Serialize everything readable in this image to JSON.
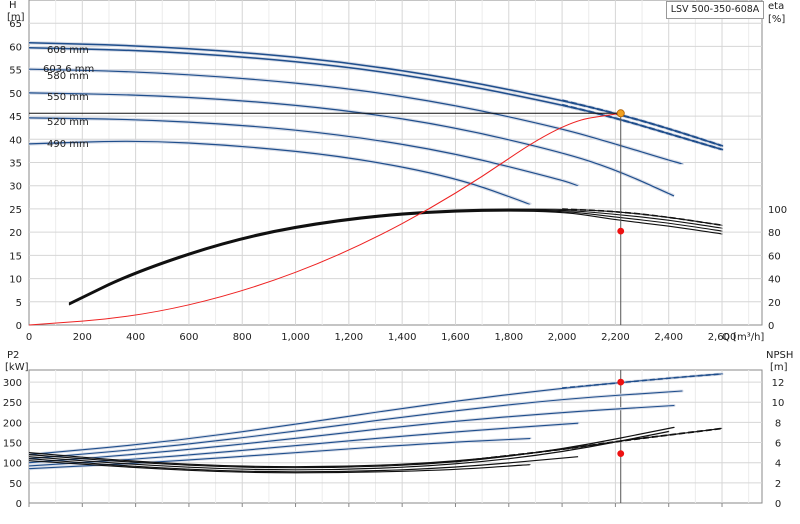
{
  "model_label": "LSV 500-350-608A",
  "chart_data": [
    {
      "type": "line",
      "title": "",
      "xlabel": "Q [m³/h]",
      "x_ticks": [
        "0",
        "200",
        "400",
        "600",
        "800",
        "1,000",
        "1,200",
        "1,400",
        "1,600",
        "1,800",
        "2,000",
        "2,200",
        "2,400",
        "2,600"
      ],
      "xlim": [
        0,
        2750
      ],
      "ylabel_left": "H [m]",
      "ylim_left": [
        0,
        70
      ],
      "yticks_left": [
        "0",
        "5",
        "10",
        "15",
        "20",
        "25",
        "30",
        "35",
        "40",
        "45",
        "50",
        "55",
        "60",
        "65"
      ],
      "ylabel_right": "eta [%]",
      "ylim_right": [
        0,
        100
      ],
      "yticks_right": [
        "0",
        "20",
        "40",
        "60",
        "80",
        "100"
      ],
      "grid": true,
      "head_curves": [
        {
          "label": "608 mm",
          "x": [
            0,
            400,
            800,
            1200,
            1600,
            2000,
            2200,
            2400,
            2600
          ],
          "y": [
            60.8,
            60.2,
            58.8,
            56.5,
            53.0,
            48.4,
            45.6,
            42.3,
            38.6
          ]
        },
        {
          "label": "603.6 mm",
          "x": [
            0,
            400,
            800,
            1200,
            1600,
            2000,
            2200,
            2400,
            2600
          ],
          "y": [
            59.7,
            59.2,
            57.8,
            55.6,
            52.1,
            47.4,
            44.6,
            41.2,
            37.8
          ]
        },
        {
          "label": "580 mm",
          "x": [
            0,
            400,
            800,
            1200,
            1600,
            2000,
            2200,
            2400,
            2450
          ],
          "y": [
            55.1,
            54.6,
            53.2,
            51.0,
            47.4,
            42.3,
            39.0,
            35.5,
            34.7
          ]
        },
        {
          "label": "550 mm",
          "x": [
            0,
            400,
            800,
            1200,
            1600,
            2000,
            2200,
            2420
          ],
          "y": [
            50.0,
            49.6,
            48.4,
            46.2,
            42.6,
            37.2,
            33.5,
            27.8
          ]
        },
        {
          "label": "520 mm",
          "x": [
            0,
            400,
            800,
            1200,
            1600,
            2000,
            2060
          ],
          "y": [
            44.6,
            44.3,
            43.1,
            40.8,
            37.0,
            31.2,
            30.0
          ]
        },
        {
          "label": "490 mm",
          "x": [
            0,
            400,
            800,
            1200,
            1600,
            1880
          ],
          "y": [
            39.0,
            39.8,
            38.6,
            36.2,
            31.8,
            26.0
          ]
        }
      ],
      "efficiency_curves": {
        "axis": "eta",
        "x": [
          150,
          400,
          800,
          1200,
          1600,
          2000,
          2200,
          2400,
          2600
        ],
        "y": [
          19,
          47,
          77,
          93,
          100,
          100,
          98,
          93,
          86
        ]
      },
      "system_curve": {
        "x": [
          0,
          400,
          800,
          1200,
          1600,
          2000,
          2220
        ],
        "y": [
          0,
          1.7,
          7.0,
          15.7,
          28.0,
          43.7,
          45.6
        ]
      },
      "duty_point": {
        "q": 2220,
        "h": 45.6,
        "eta": 80.9
      }
    },
    {
      "type": "line",
      "title": "",
      "xlim": [
        0,
        2750
      ],
      "ylabel_left": "P2 [kW]",
      "ylim_left": [
        0,
        330
      ],
      "yticks_left": [
        "0",
        "50",
        "100",
        "150",
        "200",
        "250",
        "300"
      ],
      "ylabel_right": "NPSH [m]",
      "ylim_right": [
        0,
        13.2
      ],
      "yticks_right": [
        "0",
        "2",
        "4",
        "6",
        "8",
        "10",
        "12"
      ],
      "grid": true,
      "power_curves": [
        {
          "label": "608 mm",
          "x": [
            0,
            500,
            1000,
            1500,
            2000,
            2400,
            2600
          ],
          "y": [
            120,
            150,
            195,
            245,
            285,
            310,
            320
          ]
        },
        {
          "label": "580 mm",
          "x": [
            0,
            500,
            1000,
            1500,
            2000,
            2450
          ],
          "y": [
            110,
            138,
            178,
            222,
            258,
            278
          ]
        },
        {
          "label": "550 mm",
          "x": [
            0,
            500,
            1000,
            1500,
            2000,
            2420
          ],
          "y": [
            100,
            126,
            160,
            198,
            225,
            242
          ]
        },
        {
          "label": "520 mm",
          "x": [
            0,
            500,
            1000,
            1500,
            2060
          ],
          "y": [
            92,
            113,
            142,
            172,
            198
          ]
        },
        {
          "label": "490 mm",
          "x": [
            0,
            500,
            1000,
            1500,
            1880
          ],
          "y": [
            85,
            102,
            125,
            148,
            160
          ]
        }
      ],
      "npsh_curves": [
        {
          "x": [
            0,
            400,
            800,
            1200,
            1600,
            1880
          ],
          "y": [
            4.2,
            3.5,
            3.0,
            3.0,
            3.3,
            3.8
          ]
        },
        {
          "x": [
            0,
            400,
            800,
            1200,
            1600,
            2060
          ],
          "y": [
            4.4,
            3.6,
            3.1,
            3.1,
            3.5,
            4.6
          ]
        },
        {
          "x": [
            0,
            400,
            800,
            1200,
            1600,
            2000,
            2400
          ],
          "y": [
            4.6,
            3.8,
            3.3,
            3.3,
            3.8,
            5.0,
            7.1
          ]
        },
        {
          "x": [
            0,
            400,
            800,
            1200,
            1600,
            2000,
            2420
          ],
          "y": [
            4.8,
            4.0,
            3.5,
            3.5,
            4.0,
            5.3,
            7.5
          ]
        },
        {
          "x": [
            0,
            400,
            800,
            1200,
            1600,
            2000,
            2200,
            2600
          ],
          "y": [
            5.0,
            4.1,
            3.6,
            3.6,
            4.1,
            5.3,
            6.1,
            7.4
          ]
        }
      ],
      "duty_point": {
        "q": 2220,
        "p2": 300,
        "npsh": 4.9
      }
    }
  ]
}
